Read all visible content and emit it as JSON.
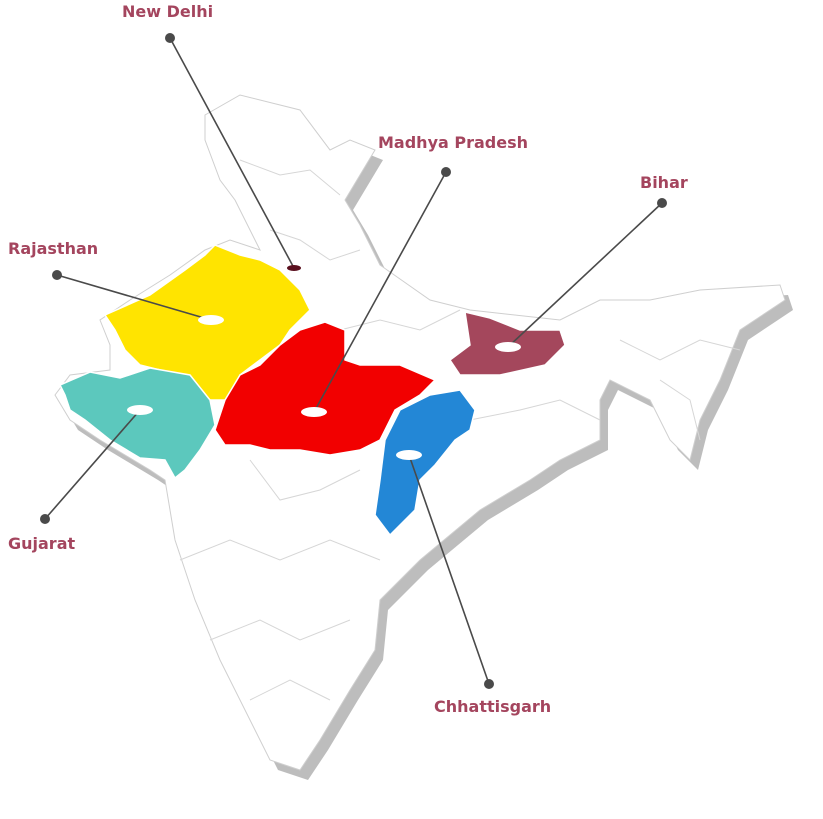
{
  "label_color": "#a4455e",
  "leader_color": "#4a4a4a",
  "map": {
    "land_color": "#ffffff",
    "shadow_color": "#bdbdbd",
    "border_color": "#cfcfcf"
  },
  "locations": {
    "new_delhi": {
      "name": "New Delhi",
      "color": "#5a0f1e"
    },
    "madhya_pradesh": {
      "name": "Madhya Pradesh",
      "color": "#f20000"
    },
    "bihar": {
      "name": "Bihar",
      "color": "#a4475c"
    },
    "rajasthan": {
      "name": "Rajasthan",
      "color": "#ffe400"
    },
    "gujarat": {
      "name": "Gujarat",
      "color": "#5cc8bd"
    },
    "chhattisgarh": {
      "name": "Chhattisgarh",
      "color": "#2387d6"
    }
  }
}
